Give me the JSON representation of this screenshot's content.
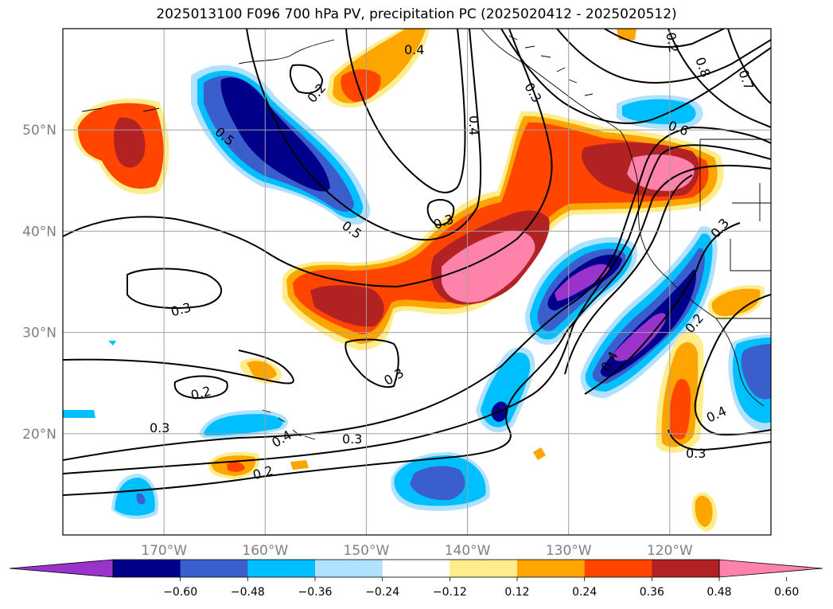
{
  "title": "2025013100 F096 700 hPa PV, precipitation PC (2025020412 - 2025020512)",
  "map": {
    "lon_range": [
      -180,
      -110
    ],
    "lat_range": [
      10,
      60
    ],
    "lon_ticks": [
      {
        "value": -170,
        "label": "170°W"
      },
      {
        "value": -160,
        "label": "160°W"
      },
      {
        "value": -150,
        "label": "150°W"
      },
      {
        "value": -140,
        "label": "140°W"
      },
      {
        "value": -130,
        "label": "130°W"
      },
      {
        "value": -120,
        "label": "120°W"
      }
    ],
    "lat_ticks": [
      {
        "value": 20,
        "label": "20°N"
      },
      {
        "value": 30,
        "label": "30°N"
      },
      {
        "value": 40,
        "label": "40°N"
      },
      {
        "value": 50,
        "label": "50°N"
      }
    ],
    "grid": true,
    "contour_labels": [
      "0.4",
      "0.2",
      "0.5",
      "0.5",
      "0.4",
      "0.8",
      "0.7",
      "0.6",
      "0.3",
      "0.3",
      "0.3",
      "0.3",
      "0.2",
      "0.3",
      "0.2",
      "0.4",
      "0.3",
      "0.2",
      "0.3",
      "0.4",
      "0.4",
      "0.3",
      "0.2"
    ]
  },
  "colorbar": {
    "tick_labels": [
      "−0.60",
      "−0.48",
      "−0.36",
      "−0.24",
      "−0.12",
      "0.12",
      "0.24",
      "0.36",
      "0.48",
      "0.60"
    ],
    "colors": [
      "#9933cc",
      "#00008b",
      "#3a5fcd",
      "#00bfff",
      "#b0e2ff",
      "#ffffff",
      "#ffec8b",
      "#ffa500",
      "#ff4500",
      "#b22222",
      "#ff82ab"
    ]
  }
}
